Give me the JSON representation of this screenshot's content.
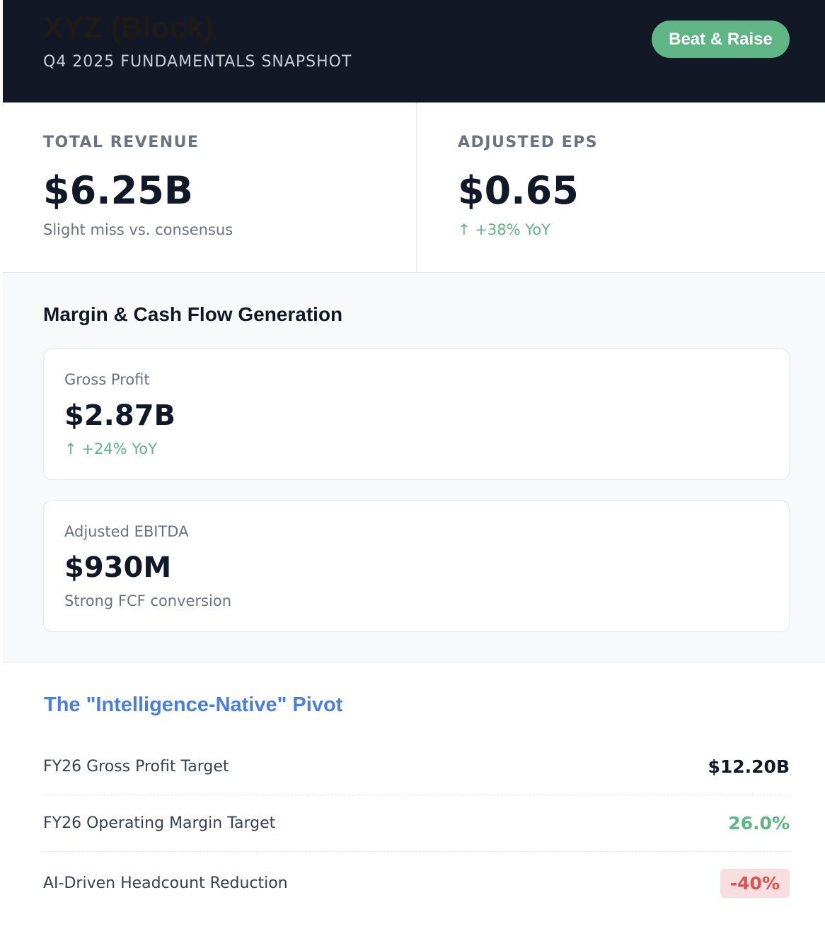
{
  "header": {
    "title": "XYZ (Block)",
    "subtitle": "Q4 2025 FUNDAMENTALS SNAPSHOT",
    "badge": "Beat & Raise"
  },
  "kpis": [
    {
      "label": "TOTAL REVENUE",
      "value": "$6.25B",
      "note": "Slight miss vs. consensus"
    },
    {
      "label": "ADJUSTED EPS",
      "value": "$0.65",
      "note": "↑ +38% YoY"
    }
  ],
  "margins": {
    "title": "Margin & Cash Flow Generation",
    "cards": [
      {
        "label": "Gross Profit",
        "value": "$2.87B",
        "note": "↑ +24% YoY"
      },
      {
        "label": "Adjusted EBITDA",
        "value": "$930M",
        "note": "Strong FCF conversion"
      }
    ]
  },
  "pivot": {
    "title": "The \"Intelligence-Native\" Pivot",
    "rows": [
      {
        "label": "FY26 Gross Profit Target",
        "value": "$12.20B"
      },
      {
        "label": "FY26 Operating Margin Target",
        "value": "26.0%"
      },
      {
        "label": "AI-Driven Headcount Reduction",
        "value": "-40%"
      }
    ]
  },
  "colors": {
    "header_bg": "#121826",
    "positive": "#5fb584",
    "negative": "#d9534f",
    "accent_blue": "#4a7fe0"
  }
}
